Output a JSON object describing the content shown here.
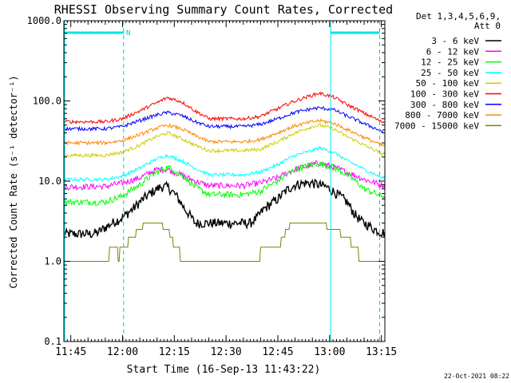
{
  "chart_data": {
    "type": "line",
    "title": "RHESSI Observing Summary Count Rates, Corrected",
    "xlabel": "Start Time (16-Sep-13 11:43:22)",
    "ylabel": "Corrected Count Rate (s⁻¹ detector⁻¹)",
    "y_scale": "log",
    "ylim": [
      0.1,
      1000
    ],
    "y_ticks": [
      {
        "value": 0.1,
        "label": "0.1"
      },
      {
        "value": 1,
        "label": "1.0"
      },
      {
        "value": 10,
        "label": "10.0"
      },
      {
        "value": 100,
        "label": "100.0"
      },
      {
        "value": 1000,
        "label": "1000.0"
      }
    ],
    "xlim_minutes": [
      -2,
      91
    ],
    "x_ticks": [
      {
        "minute": 0,
        "label": "11:45"
      },
      {
        "minute": 15,
        "label": "12:00"
      },
      {
        "minute": 30,
        "label": "12:15"
      },
      {
        "minute": 45,
        "label": "12:30"
      },
      {
        "minute": 60,
        "label": "12:45"
      },
      {
        "minute": 75,
        "label": "13:00"
      },
      {
        "minute": 90,
        "label": "13:15"
      }
    ],
    "legend_header": [
      "Det 1,3,4,5,6,9,",
      "Att 0"
    ],
    "legend_position": "right",
    "series": [
      {
        "name": "3 - 6 keV",
        "color": "#000000",
        "x": [
          -2,
          6,
          8,
          12,
          15,
          18,
          20,
          23,
          25,
          26,
          28,
          30,
          33,
          34,
          36,
          45,
          52,
          54,
          56,
          60,
          63,
          65,
          68,
          70,
          72,
          74,
          76,
          80,
          82,
          84,
          88,
          90
        ],
        "y": [
          2.2,
          2.2,
          2.3,
          3.0,
          3.5,
          4.5,
          5.5,
          7.0,
          8.0,
          8.5,
          8.5,
          7.0,
          4.5,
          4.0,
          3.0,
          3.0,
          3.0,
          3.5,
          4.5,
          6.0,
          8.0,
          9.0,
          9.5,
          9.5,
          9.0,
          8.5,
          7.5,
          5.5,
          4.0,
          3.2,
          2.5,
          2.3
        ]
      },
      {
        "name": "6 - 12 keV",
        "color": "#ff00ff",
        "x": [
          -2,
          10,
          15,
          20,
          25,
          28,
          32,
          36,
          40,
          50,
          55,
          60,
          65,
          70,
          72,
          76,
          80,
          85,
          90
        ],
        "y": [
          8.5,
          8.6,
          9.5,
          11,
          14,
          14,
          12,
          10,
          8.8,
          8.8,
          9.5,
          11,
          14,
          16,
          17,
          15,
          13,
          10.5,
          9.0
        ]
      },
      {
        "name": "12 - 25 keV",
        "color": "#00ff00",
        "x": [
          -2,
          10,
          15,
          20,
          25,
          28,
          32,
          36,
          40,
          50,
          55,
          60,
          65,
          70,
          72,
          76,
          80,
          85,
          90
        ],
        "y": [
          5.5,
          5.5,
          6.5,
          9,
          13,
          15,
          12,
          8.5,
          6.8,
          6.8,
          7.5,
          10,
          14,
          16,
          16.5,
          15,
          12,
          8,
          6.5
        ]
      },
      {
        "name": "25 - 50 keV",
        "color": "#00ffff",
        "x": [
          -2,
          10,
          15,
          20,
          25,
          28,
          32,
          36,
          40,
          50,
          55,
          60,
          65,
          70,
          72,
          76,
          80,
          85,
          90
        ],
        "y": [
          10.5,
          10.5,
          11.5,
          14.5,
          19,
          21,
          18,
          14.5,
          12,
          12,
          13,
          16,
          21,
          24,
          26,
          23,
          18,
          14,
          11
        ]
      },
      {
        "name": "50 - 100 keV",
        "color": "#cccc00",
        "x": [
          -2,
          10,
          15,
          20,
          25,
          28,
          32,
          36,
          40,
          50,
          55,
          60,
          65,
          70,
          72,
          76,
          80,
          85,
          90
        ],
        "y": [
          21,
          21,
          23,
          28,
          36,
          40,
          34,
          28,
          24,
          24,
          25,
          31,
          40,
          48,
          50,
          45,
          36,
          28,
          22
        ]
      },
      {
        "name": "100 - 300 keV",
        "color": "#ff0000",
        "x": [
          -2,
          10,
          15,
          20,
          25,
          28,
          32,
          36,
          40,
          50,
          55,
          60,
          65,
          70,
          72,
          76,
          80,
          85,
          90
        ],
        "y": [
          55,
          55,
          60,
          75,
          95,
          110,
          98,
          75,
          60,
          60,
          64,
          80,
          100,
          118,
          125,
          112,
          90,
          70,
          55
        ]
      },
      {
        "name": "300 - 800 keV",
        "color": "#0000ff",
        "x": [
          -2,
          10,
          15,
          20,
          25,
          28,
          32,
          36,
          40,
          50,
          55,
          60,
          65,
          70,
          72,
          76,
          80,
          85,
          90
        ],
        "y": [
          45,
          45,
          48,
          57,
          67,
          72,
          66,
          55,
          48,
          48,
          51,
          60,
          72,
          80,
          82,
          78,
          65,
          52,
          42
        ]
      },
      {
        "name": "800 - 7000 keV",
        "color": "#ff8800",
        "x": [
          -2,
          10,
          15,
          20,
          25,
          28,
          32,
          36,
          40,
          50,
          55,
          60,
          65,
          70,
          72,
          76,
          80,
          85,
          90
        ],
        "y": [
          30,
          30,
          32,
          38,
          46,
          50,
          45,
          37,
          31,
          31,
          33,
          40,
          49,
          55,
          57,
          53,
          44,
          35,
          28
        ]
      },
      {
        "name": "7000 - 15000 keV",
        "color": "#808000",
        "x": [
          -2,
          6,
          10,
          12,
          14,
          18,
          20,
          22,
          25,
          28,
          30,
          32,
          35,
          36,
          50,
          54,
          56,
          60,
          62,
          64,
          68,
          72,
          76,
          80,
          82,
          84,
          86,
          88,
          90
        ],
        "y": [
          1.0,
          1.0,
          1.0,
          1.4,
          1.2,
          2.0,
          2.5,
          3.0,
          3.0,
          2.5,
          1.5,
          1.2,
          1.0,
          1.0,
          1.0,
          1.0,
          1.5,
          1.3,
          2.2,
          3.0,
          3.0,
          3.0,
          2.5,
          2.0,
          1.5,
          1.1,
          1.0,
          1.0,
          1.0
        ]
      }
    ],
    "annotations": [
      {
        "text": "N",
        "type": "flag-label"
      }
    ],
    "grid": false
  },
  "footer": {
    "timestamp": "22-Oct-2021 08:22"
  }
}
